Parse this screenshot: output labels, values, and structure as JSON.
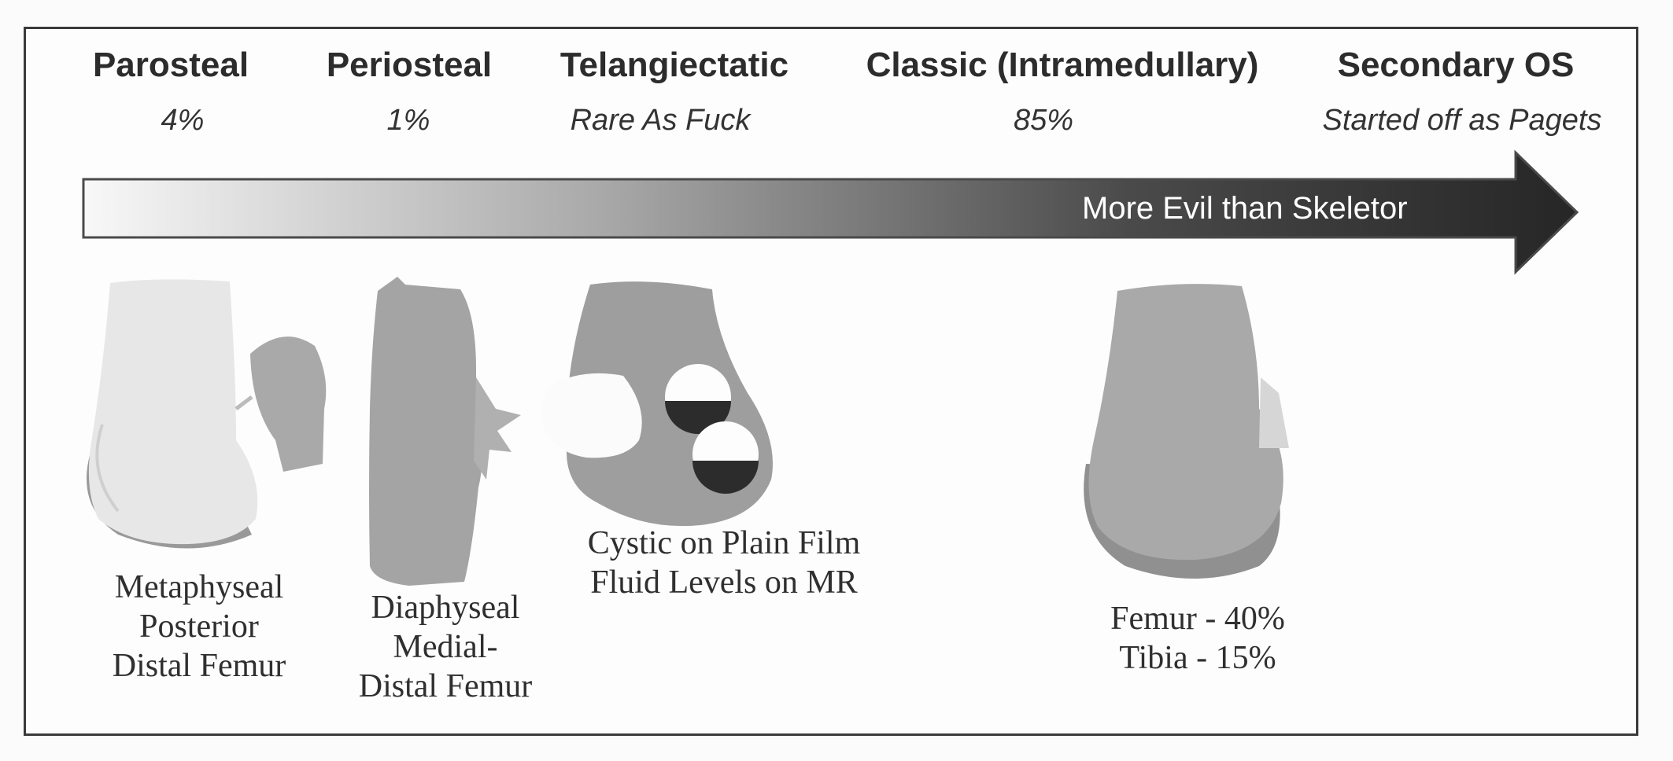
{
  "categories": [
    {
      "name": "Parosteal",
      "frequency": "4%"
    },
    {
      "name": "Periosteal",
      "frequency": "1%"
    },
    {
      "name": "Telangiectatic",
      "frequency": "Rare As Fuck"
    },
    {
      "name": "Classic (Intramedullary)",
      "frequency": "85%"
    },
    {
      "name": "Secondary OS",
      "frequency": "Started off as Pagets"
    }
  ],
  "arrow": {
    "label": "More Evil than Skeletor"
  },
  "captions": {
    "parosteal": [
      "Metaphyseal",
      "Posterior",
      "Distal Femur"
    ],
    "periosteal": [
      "Diaphyseal",
      "Medial-",
      "Distal Femur"
    ],
    "telangiectatic": [
      "Cystic on Plain Film",
      "Fluid Levels on MR"
    ],
    "classic": [
      "Femur - 40%",
      "Tibia - 15%"
    ]
  }
}
